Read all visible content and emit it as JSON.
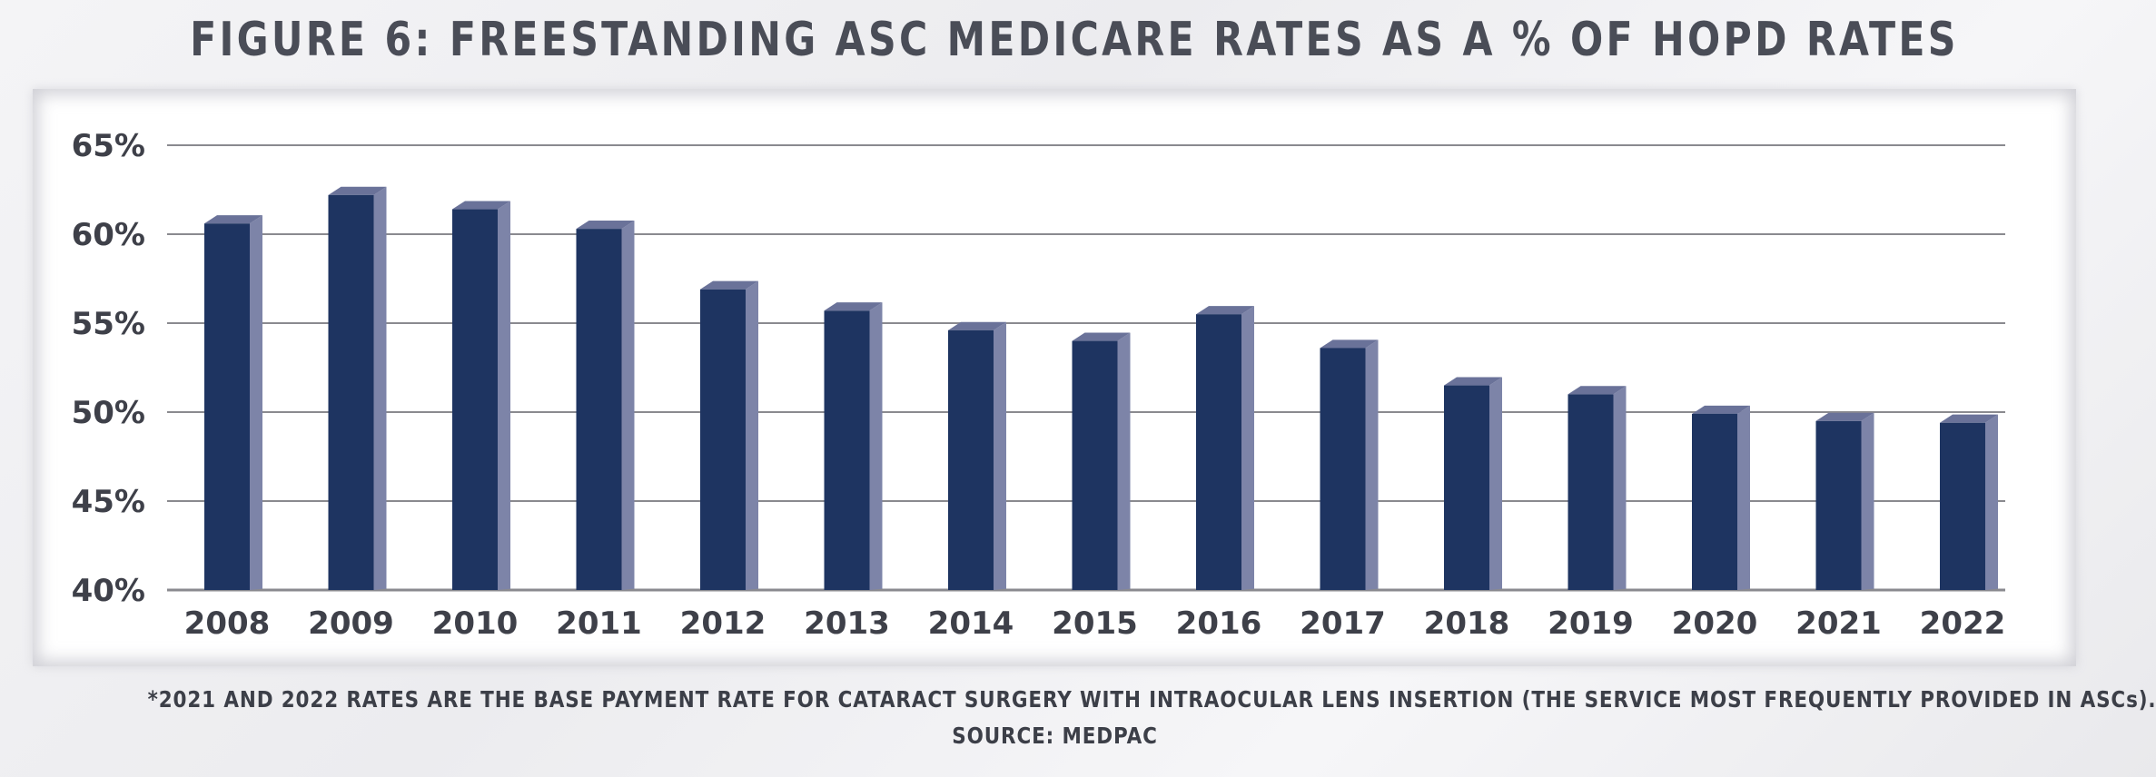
{
  "title": "FIGURE 6: FREESTANDING ASC MEDICARE RATES AS A % OF HOPD RATES",
  "footnote": "*2021 AND 2022 RATES ARE THE BASE PAYMENT RATE FOR CATARACT SURGERY WITH INTRAOCULAR LENS INSERTION (THE SERVICE MOST FREQUENTLY PROVIDED IN ASCs).",
  "source": "SOURCE: MEDPAC",
  "colors": {
    "bar_front": "#1e3461",
    "bar_side": "#7d84a8",
    "bar_top": "#6a7299",
    "grid": "#8a8a8f",
    "text": "#3e4049"
  },
  "chart_data": {
    "type": "bar",
    "categories": [
      "2008",
      "2009",
      "2010",
      "2011",
      "2012",
      "2013",
      "2014",
      "2015",
      "2016",
      "2017",
      "2018",
      "2019",
      "2020",
      "2021",
      "2022"
    ],
    "values": [
      60.6,
      62.2,
      61.4,
      60.3,
      56.9,
      55.7,
      54.6,
      54.0,
      55.5,
      53.6,
      51.5,
      51.0,
      49.9,
      49.5,
      49.4
    ],
    "yticks": [
      "65%",
      "60%",
      "55%",
      "50%",
      "45%",
      "40%"
    ],
    "ylim": [
      40,
      65
    ],
    "grid": true
  }
}
